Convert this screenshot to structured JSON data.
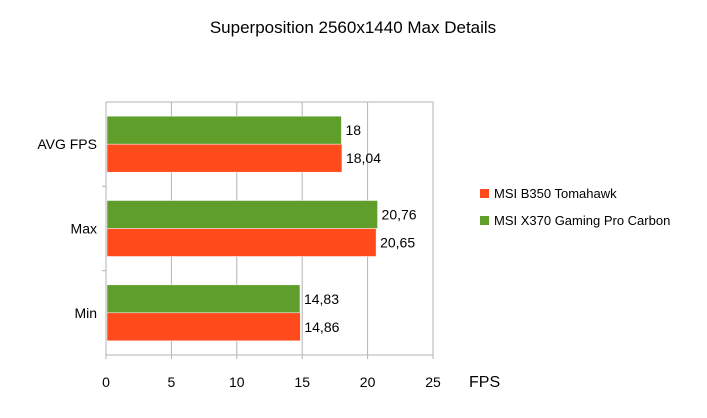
{
  "chart_data": {
    "type": "bar",
    "orientation": "horizontal",
    "title": "Superposition 2560x1440 Max Details",
    "xlabel": "FPS",
    "ylabel": "",
    "categories": [
      "AVG FPS",
      "Max",
      "Min"
    ],
    "series": [
      {
        "name": "MSI X370 Gaming Pro Carbon",
        "color": "#5f9e2a",
        "values": [
          18,
          20.76,
          14.83
        ],
        "labels": [
          "18",
          "20,76",
          "14,83"
        ]
      },
      {
        "name": "MSI B350 Tomahawk",
        "color": "#ff4a1c",
        "values": [
          18.04,
          20.65,
          14.86
        ],
        "labels": [
          "18,04",
          "20,65",
          "14,86"
        ]
      }
    ],
    "legend_order": [
      "MSI B350 Tomahawk",
      "MSI X370 Gaming Pro Carbon"
    ],
    "xlim": [
      0,
      25
    ],
    "xticks": [
      "0",
      "5",
      "10",
      "15",
      "20",
      "25"
    ],
    "grid": "vertical",
    "legend_position": "right"
  }
}
